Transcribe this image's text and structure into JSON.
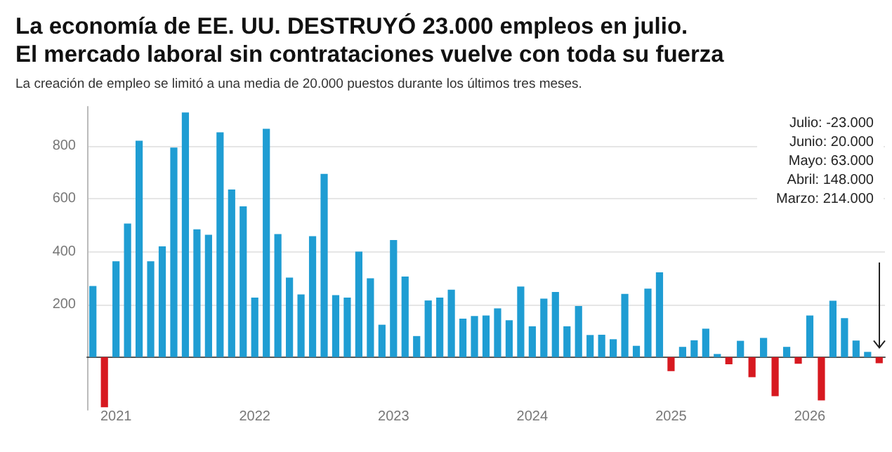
{
  "chart_data": {
    "type": "bar",
    "title": "La economía de EE. UU. DESTRUYÓ 23.000 empleos en julio.\nEl mercado laboral sin contrataciones vuelve con toda su fuerza",
    "subtitle": "La creación de empleo se limitó a una media de 20.000 puestos durante los últimos tres meses.",
    "categories": [
      null,
      null,
      "2021",
      null,
      null,
      null,
      null,
      null,
      null,
      null,
      null,
      null,
      null,
      null,
      "2022",
      null,
      null,
      null,
      null,
      null,
      null,
      null,
      null,
      null,
      null,
      null,
      "2023",
      null,
      null,
      null,
      null,
      null,
      null,
      null,
      null,
      null,
      null,
      null,
      "2024",
      null,
      null,
      null,
      null,
      null,
      null,
      null,
      null,
      null,
      null,
      null,
      "2025",
      null,
      null,
      null,
      null,
      null,
      null,
      null,
      null,
      null,
      null,
      null,
      "2026",
      null,
      null,
      null,
      null,
      null,
      null
    ],
    "values": [
      270,
      -190,
      364,
      507,
      821,
      364,
      420,
      795,
      928,
      485,
      464,
      853,
      636,
      572,
      226,
      866,
      467,
      302,
      238,
      459,
      695,
      235,
      226,
      400,
      299,
      123,
      444,
      306,
      80,
      215,
      226,
      256,
      146,
      156,
      158,
      185,
      140,
      268,
      117,
      222,
      247,
      117,
      194,
      84,
      85,
      68,
      240,
      43,
      260,
      322,
      -53,
      39,
      64,
      108,
      12,
      -27,
      62,
      -76,
      73,
      -148,
      39,
      -25,
      158,
      -164,
      214,
      148,
      63,
      20,
      -23
    ],
    "colors": [
      "#1f9dd3",
      "#d71920",
      "#1f9dd3",
      "#1f9dd3",
      "#1f9dd3",
      "#1f9dd3",
      "#1f9dd3",
      "#1f9dd3",
      "#1f9dd3",
      "#1f9dd3",
      "#1f9dd3",
      "#1f9dd3",
      "#1f9dd3",
      "#1f9dd3",
      "#1f9dd3",
      "#1f9dd3",
      "#1f9dd3",
      "#1f9dd3",
      "#1f9dd3",
      "#1f9dd3",
      "#1f9dd3",
      "#1f9dd3",
      "#1f9dd3",
      "#1f9dd3",
      "#1f9dd3",
      "#1f9dd3",
      "#1f9dd3",
      "#1f9dd3",
      "#1f9dd3",
      "#1f9dd3",
      "#1f9dd3",
      "#1f9dd3",
      "#1f9dd3",
      "#1f9dd3",
      "#1f9dd3",
      "#1f9dd3",
      "#1f9dd3",
      "#1f9dd3",
      "#1f9dd3",
      "#1f9dd3",
      "#1f9dd3",
      "#1f9dd3",
      "#1f9dd3",
      "#1f9dd3",
      "#1f9dd3",
      "#1f9dd3",
      "#1f9dd3",
      "#1f9dd3",
      "#1f9dd3",
      "#1f9dd3",
      "#d71920",
      "#1f9dd3",
      "#1f9dd3",
      "#1f9dd3",
      "#1f9dd3",
      "#d71920",
      "#1f9dd3",
      "#d71920",
      "#1f9dd3",
      "#d71920",
      "#1f9dd3",
      "#d71920",
      "#1f9dd3",
      "#d71920",
      "#1f9dd3",
      "#1f9dd3",
      "#1f9dd3",
      "#1f9dd3",
      "#d71920"
    ],
    "ylim": [
      -200,
      950
    ],
    "yticks": [
      200,
      400,
      600,
      800
    ],
    "grid": "y",
    "annotations": [
      "Julio: -23.000",
      "Junio: 20.000",
      "Mayo: 63.000",
      "Abril: 148.000",
      "Marzo: 214.000"
    ]
  }
}
